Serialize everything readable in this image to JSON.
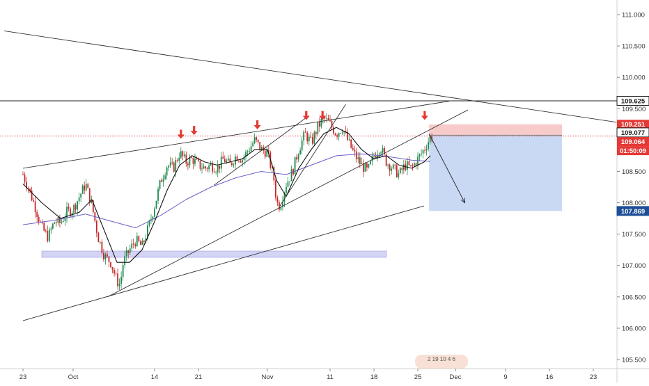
{
  "chart_data": {
    "type": "candlestick",
    "y_axis": {
      "position": "right",
      "ylim": [
        105.3,
        111.2
      ],
      "ticks": [
        "111.000",
        "110.500",
        "110.000",
        "109.500",
        "109.000",
        "108.500",
        "108.000",
        "107.500",
        "107.000",
        "106.500",
        "106.000",
        "105.500"
      ],
      "tick_values": [
        111.0,
        110.5,
        110.0,
        109.5,
        109.0,
        108.5,
        108.0,
        107.5,
        107.0,
        106.5,
        106.0,
        105.5
      ]
    },
    "x_axis": {
      "domain_days": [
        0,
        95
      ],
      "ticks": [
        {
          "label": "23",
          "day": 0
        },
        {
          "label": "Oct",
          "day": 8
        },
        {
          "label": "14",
          "day": 21
        },
        {
          "label": "21",
          "day": 28
        },
        {
          "label": "Nov",
          "day": 39
        },
        {
          "label": "11",
          "day": 49
        },
        {
          "label": "18",
          "day": 56
        },
        {
          "label": "25",
          "day": 63
        },
        {
          "label": "Dec",
          "day": 69
        },
        {
          "label": "9",
          "day": 77
        },
        {
          "label": "16",
          "day": 84
        },
        {
          "label": "23",
          "day": 91
        }
      ]
    },
    "price_labels": [
      {
        "value": 109.625,
        "text": "109.625",
        "style": "black"
      },
      {
        "value": 109.251,
        "text": "109.251",
        "style": "red"
      },
      {
        "value": 109.077,
        "text": "109.077",
        "style": "black"
      },
      {
        "value": 109.064,
        "text": "109.064",
        "style": "red"
      },
      {
        "value": 107.869,
        "text": "107.869",
        "style": "blue"
      }
    ],
    "countdown": "01:50:09",
    "horizontal_lines": [
      {
        "value": 109.625,
        "style": "solid"
      },
      {
        "value": 109.064,
        "style": "dotted-red"
      }
    ],
    "trend_lines": [
      {
        "from": [
          -3,
          110.74
        ],
        "to": [
          97,
          109.25
        ]
      },
      {
        "from": [
          0,
          108.55
        ],
        "to": [
          68,
          109.62
        ]
      },
      {
        "from": [
          0,
          106.12
        ],
        "to": [
          64,
          107.95
        ]
      },
      {
        "from": [
          13.5,
          106.5
        ],
        "to": [
          71,
          109.48
        ]
      },
      {
        "from": [
          30.5,
          108.28
        ],
        "to": [
          45.5,
          109.38
        ]
      },
      {
        "from": [
          41,
          107.95
        ],
        "to": [
          51.5,
          109.57
        ]
      }
    ],
    "zones": [
      {
        "kind": "support",
        "x": [
          3,
          58
        ],
        "y": [
          107.13,
          107.23
        ],
        "color": "#b8b8ec"
      },
      {
        "kind": "stop-loss",
        "x": [
          64.8,
          86
        ],
        "y": [
          109.077,
          109.251
        ],
        "color": "#f6b9b9"
      },
      {
        "kind": "take-profit",
        "x": [
          64.8,
          86
        ],
        "y": [
          107.869,
          109.077
        ],
        "color": "#b7cbef"
      }
    ],
    "projection_arrow": {
      "from": [
        64.8,
        109.1
      ],
      "to": [
        70.5,
        108.0
      ]
    },
    "marker_arrows_down": [
      {
        "day": 25.2,
        "value": 109.02
      },
      {
        "day": 27.3,
        "value": 109.08
      },
      {
        "day": 37.4,
        "value": 109.17
      },
      {
        "day": 45.2,
        "value": 109.32
      },
      {
        "day": 47.8,
        "value": 109.32
      },
      {
        "day": 64.1,
        "value": 109.32
      }
    ],
    "close_series": [
      [
        0,
        108.45
      ],
      [
        1,
        108.2
      ],
      [
        2,
        107.92
      ],
      [
        3,
        107.6
      ],
      [
        4,
        107.45
      ],
      [
        5,
        107.7
      ],
      [
        6,
        107.68
      ],
      [
        7,
        107.85
      ],
      [
        8,
        107.9
      ],
      [
        9,
        108.1
      ],
      [
        10,
        108.3
      ],
      [
        11,
        107.95
      ],
      [
        12,
        107.45
      ],
      [
        13,
        107.15
      ],
      [
        14,
        107.05
      ],
      [
        15,
        106.75
      ],
      [
        15.5,
        106.7
      ],
      [
        16,
        107.05
      ],
      [
        17,
        107.25
      ],
      [
        18,
        107.4
      ],
      [
        19,
        107.3
      ],
      [
        20,
        107.6
      ],
      [
        21,
        107.95
      ],
      [
        22,
        108.35
      ],
      [
        23,
        108.6
      ],
      [
        24,
        108.55
      ],
      [
        25,
        108.8
      ],
      [
        26,
        108.65
      ],
      [
        27,
        108.7
      ],
      [
        28,
        108.6
      ],
      [
        29,
        108.55
      ],
      [
        30,
        108.6
      ],
      [
        31,
        108.55
      ],
      [
        32,
        108.7
      ],
      [
        33,
        108.6
      ],
      [
        34,
        108.75
      ],
      [
        35,
        108.7
      ],
      [
        36,
        108.85
      ],
      [
        37,
        109.0
      ],
      [
        38,
        108.85
      ],
      [
        39,
        108.8
      ],
      [
        40,
        108.4
      ],
      [
        40.5,
        108.0
      ],
      [
        41,
        107.95
      ],
      [
        42,
        108.3
      ],
      [
        43,
        108.5
      ],
      [
        44,
        108.85
      ],
      [
        45,
        109.1
      ],
      [
        46,
        108.95
      ],
      [
        47,
        109.2
      ],
      [
        48,
        109.35
      ],
      [
        49,
        109.25
      ],
      [
        50,
        109.1
      ],
      [
        51,
        109.2
      ],
      [
        52,
        108.95
      ],
      [
        53,
        108.75
      ],
      [
        54,
        108.6
      ],
      [
        55,
        108.5
      ],
      [
        56,
        108.75
      ],
      [
        57,
        108.9
      ],
      [
        58,
        108.65
      ],
      [
        59,
        108.55
      ],
      [
        60,
        108.45
      ],
      [
        61,
        108.6
      ],
      [
        62,
        108.55
      ],
      [
        63,
        108.7
      ],
      [
        64,
        108.85
      ],
      [
        65,
        109.05
      ]
    ],
    "fast_ma": [
      [
        0,
        108.3
      ],
      [
        3,
        108.0
      ],
      [
        6,
        107.75
      ],
      [
        9,
        107.85
      ],
      [
        11,
        108.05
      ],
      [
        13,
        107.55
      ],
      [
        15,
        107.05
      ],
      [
        17,
        107.05
      ],
      [
        19,
        107.25
      ],
      [
        21,
        107.7
      ],
      [
        23,
        108.2
      ],
      [
        25,
        108.6
      ],
      [
        27,
        108.75
      ],
      [
        29,
        108.65
      ],
      [
        31,
        108.6
      ],
      [
        33,
        108.65
      ],
      [
        35,
        108.7
      ],
      [
        37,
        108.85
      ],
      [
        39,
        108.85
      ],
      [
        40.5,
        108.35
      ],
      [
        42,
        108.1
      ],
      [
        44,
        108.55
      ],
      [
        46,
        108.85
      ],
      [
        48,
        109.1
      ],
      [
        50,
        109.2
      ],
      [
        52,
        109.1
      ],
      [
        54,
        108.85
      ],
      [
        56,
        108.7
      ],
      [
        58,
        108.75
      ],
      [
        60,
        108.6
      ],
      [
        62,
        108.55
      ],
      [
        64,
        108.65
      ],
      [
        65,
        108.75
      ]
    ],
    "slow_ma": [
      [
        0,
        107.65
      ],
      [
        5,
        107.72
      ],
      [
        10,
        107.82
      ],
      [
        15,
        107.68
      ],
      [
        18,
        107.6
      ],
      [
        22,
        107.8
      ],
      [
        26,
        108.05
      ],
      [
        30,
        108.25
      ],
      [
        34,
        108.4
      ],
      [
        38,
        108.5
      ],
      [
        42,
        108.45
      ],
      [
        46,
        108.6
      ],
      [
        50,
        108.75
      ],
      [
        54,
        108.78
      ],
      [
        58,
        108.74
      ],
      [
        62,
        108.68
      ],
      [
        65,
        108.66
      ]
    ],
    "watermark": "2 19 10 4 6"
  }
}
